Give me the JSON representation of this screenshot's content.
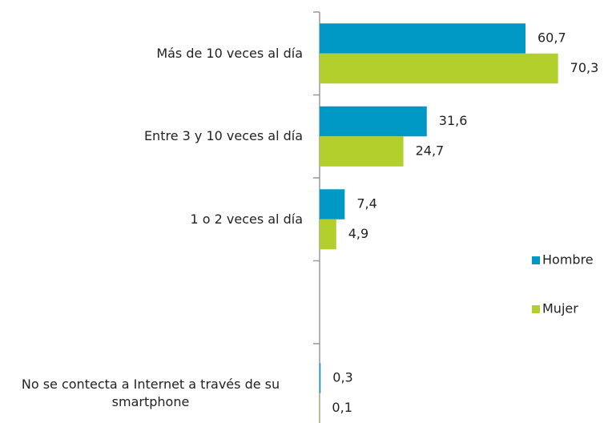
{
  "chart_data": {
    "type": "bar",
    "orientation": "horizontal",
    "categories": [
      "Más de 10 veces al día",
      "Entre 3 y 10 veces al día",
      "1 o 2 veces al día",
      null,
      "No se contecta a Internet a través de su smartphone"
    ],
    "series": [
      {
        "name": "Hombre",
        "color": "#0099c6",
        "values": [
          60.7,
          31.6,
          7.4,
          null,
          0.3
        ],
        "value_labels": [
          "60,7",
          "31,6",
          "7,4",
          null,
          "0,3"
        ]
      },
      {
        "name": "Mujer",
        "color": "#b2cf2c",
        "values": [
          70.3,
          24.7,
          4.9,
          null,
          0.1
        ],
        "value_labels": [
          "70,3",
          "24,7",
          "4,9",
          null,
          "0,1"
        ]
      }
    ],
    "legend": "right"
  }
}
